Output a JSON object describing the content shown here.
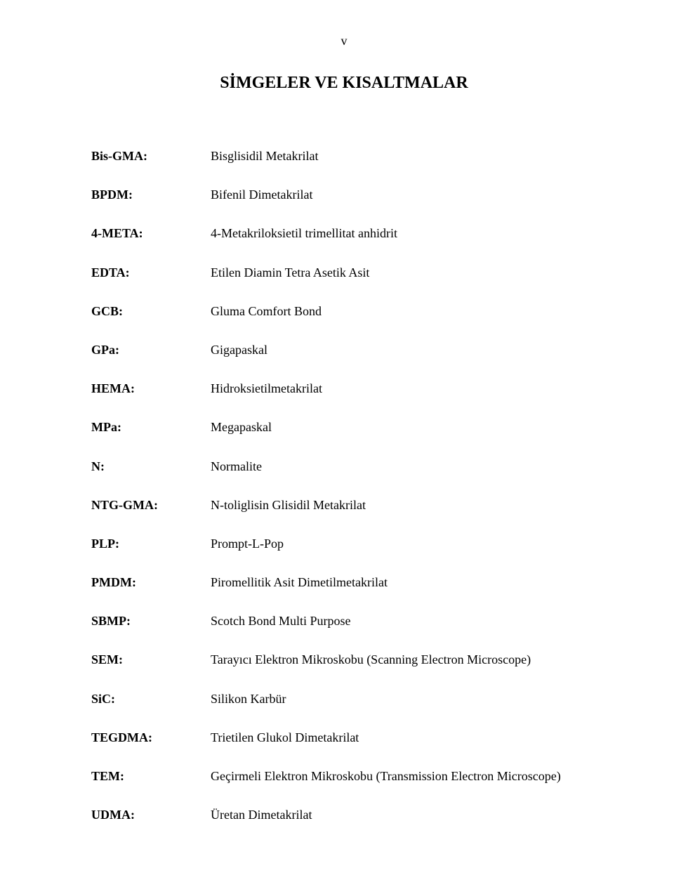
{
  "page_number": "v",
  "title": "SİMGELER VE KISALTMALAR",
  "entries": [
    {
      "term": "Bis-GMA:",
      "def": "Bisglisidil Metakrilat"
    },
    {
      "term": "BPDM:",
      "def": "Bifenil Dimetakrilat"
    },
    {
      "term": "4-META:",
      "def": "4-Metakriloksietil trimellitat anhidrit"
    },
    {
      "term": "EDTA:",
      "def": "Etilen Diamin Tetra Asetik Asit"
    },
    {
      "term": "GCB:",
      "def": "Gluma Comfort Bond"
    },
    {
      "term": "GPa:",
      "def": "Gigapaskal"
    },
    {
      "term": "HEMA:",
      "def": "Hidroksietilmetakrilat"
    },
    {
      "term": "MPa:",
      "def": "Megapaskal"
    },
    {
      "term": "N:",
      "def": "Normalite"
    },
    {
      "term": "NTG-GMA:",
      "def": "N-toliglisin Glisidil Metakrilat"
    },
    {
      "term": "PLP:",
      "def": "Prompt-L-Pop"
    },
    {
      "term": "PMDM:",
      "def": "Piromellitik Asit Dimetilmetakrilat"
    },
    {
      "term": "SBMP:",
      "def": "Scotch Bond Multi Purpose"
    },
    {
      "term": "SEM:",
      "def": "Tarayıcı Elektron Mikroskobu (Scanning Electron Microscope)"
    },
    {
      "term": "SiC:",
      "def": "Silikon Karbür"
    },
    {
      "term": "TEGDMA:",
      "def": "Trietilen Glukol Dimetakrilat"
    },
    {
      "term": "TEM:",
      "def": "Geçirmeli Elektron Mikroskobu (Transmission Electron Microscope)"
    },
    {
      "term": "UDMA:",
      "def": "Üretan Dimetakrilat"
    }
  ]
}
